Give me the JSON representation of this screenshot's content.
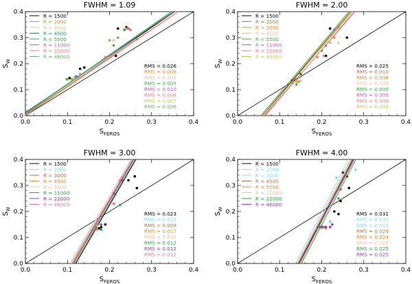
{
  "colors": {
    "1500": "#000000",
    "2000": "#b07040",
    "3000": "#e08a2a",
    "4500": "#1a66c9",
    "5500": "#3cae3c",
    "11000": "#8b2fd1",
    "22000": "#f07b8a",
    "46000": "#c9c94a",
    "cyan": "#7be3e6",
    "green2": "#20a840",
    "pink2": "#f07898",
    "purple2": "#8a3cc8",
    "diag": "#000000",
    "axis": "#000000"
  },
  "chart_data": [
    {
      "type": "scatter",
      "title": "FWHM = 1.09",
      "xlabel": "S_FEROS",
      "ylabel": "S_W",
      "xlim": [
        0.0,
        0.4
      ],
      "ylim": [
        0.0,
        0.4
      ],
      "xticks": [
        "0.0",
        "0.1",
        "0.2",
        "0.3",
        "0.4"
      ],
      "yticks": [
        "0.0",
        "0.1",
        "0.2",
        "0.3",
        "0.4"
      ],
      "legend": [
        {
          "label": "R = 1500",
          "color": "#000000"
        },
        {
          "label": "R = 2000",
          "color": "#e08a2a"
        },
        {
          "label": "R = 3000",
          "color": "#f2c0a0"
        },
        {
          "label": "R = 4500",
          "color": "#1aa060"
        },
        {
          "label": "R = 5500",
          "color": "#3cae3c"
        },
        {
          "label": "R = 11000",
          "color": "#b060c8"
        },
        {
          "label": "R = 22000",
          "color": "#f07b8a"
        },
        {
          "label": "R = 46000",
          "color": "#6ab06a"
        }
      ],
      "rms": [
        {
          "label": "RMS = 0.026",
          "color": "#000000"
        },
        {
          "label": "RMS = 0.006",
          "color": "#e08a2a"
        },
        {
          "label": "RMS = 0.005",
          "color": "#f2c0a0"
        },
        {
          "label": "RMS = 0.005",
          "color": "#3cae3c"
        },
        {
          "label": "RMS = 0.010",
          "color": "#b060c8"
        },
        {
          "label": "RMS = 0.008",
          "color": "#f07b8a"
        },
        {
          "label": "RMS = 0.007",
          "color": "#c9c94a"
        },
        {
          "label": "RMS = 0.006",
          "color": "#6ab06a"
        }
      ],
      "series": [
        {
          "color": "#000000",
          "fit": [
            0.0,
            0.012,
            0.4,
            0.45
          ],
          "points": [
            [
              0.1,
              0.14
            ],
            [
              0.105,
              0.145
            ],
            [
              0.12,
              0.15
            ],
            [
              0.13,
              0.18
            ],
            [
              0.22,
              0.335
            ],
            [
              0.24,
              0.34
            ],
            [
              0.265,
              0.295
            ],
            [
              0.215,
              0.23
            ],
            [
              0.14,
              0.185
            ]
          ]
        },
        {
          "color": "#e08a2a",
          "fit": [
            0.0,
            0.0,
            0.4,
            0.44
          ],
          "points": [
            [
              0.11,
              0.14
            ],
            [
              0.2,
              0.29
            ],
            [
              0.25,
              0.33
            ],
            [
              0.24,
              0.335
            ]
          ]
        },
        {
          "color": "#f2c0a0",
          "fit": [
            0.0,
            0.004,
            0.4,
            0.445
          ],
          "points": [
            [
              0.115,
              0.145
            ],
            [
              0.21,
              0.29
            ]
          ]
        },
        {
          "color": "#1aa060",
          "fit": [
            0.0,
            0.008,
            0.4,
            0.455
          ],
          "points": [
            [
              0.12,
              0.15
            ],
            [
              0.235,
              0.33
            ]
          ]
        },
        {
          "color": "#3cae3c",
          "fit": [
            0.0,
            0.006,
            0.4,
            0.46
          ],
          "points": [
            [
              0.098,
              0.14
            ],
            [
              0.21,
              0.27
            ]
          ]
        },
        {
          "color": "#b060c8",
          "fit": [
            0.0,
            0.002,
            0.4,
            0.45
          ],
          "points": [
            [
              0.125,
              0.15
            ],
            [
              0.245,
              0.335
            ]
          ]
        },
        {
          "color": "#f07b8a",
          "fit": [
            0.0,
            0.004,
            0.4,
            0.44
          ],
          "points": [
            [
              0.13,
              0.16
            ],
            [
              0.19,
              0.225
            ],
            [
              0.205,
              0.23
            ]
          ]
        },
        {
          "color": "#6ab06a",
          "fit": [
            0.0,
            0.01,
            0.4,
            0.46
          ],
          "points": [
            [
              0.1,
              0.14
            ],
            [
              0.22,
              0.3
            ]
          ]
        }
      ]
    },
    {
      "type": "scatter",
      "title": "FWHM = 2.00",
      "xlabel": "S_FEROS",
      "ylabel": "S_W",
      "xlim": [
        0.0,
        0.4
      ],
      "ylim": [
        0.0,
        0.4
      ],
      "xticks": [
        "0.0",
        "0.1",
        "0.2",
        "0.3",
        "0.4"
      ],
      "yticks": [
        "0.0",
        "0.1",
        "0.2",
        "0.3",
        "0.4"
      ],
      "legend": [
        {
          "label": "R = 1500",
          "color": "#000000"
        },
        {
          "label": "R = 2000",
          "color": "#b07040"
        },
        {
          "label": "R = 3000",
          "color": "#e08a2a"
        },
        {
          "label": "R = 4500",
          "color": "#f2c0a0"
        },
        {
          "label": "R = 5500",
          "color": "#3cae3c"
        },
        {
          "label": "R = 11000",
          "color": "#b060c8"
        },
        {
          "label": "R = 22000",
          "color": "#f07b8a"
        },
        {
          "label": "R = 46000",
          "color": "#c9c94a"
        }
      ],
      "rms": [
        {
          "label": "RMS = 0.025",
          "color": "#000000"
        },
        {
          "label": "RMS = 0.010",
          "color": "#b07040"
        },
        {
          "label": "RMS = 0.008",
          "color": "#e08a2a"
        },
        {
          "label": "RMS = 0.009",
          "color": "#f2c0a0"
        },
        {
          "label": "RMS = 0.005",
          "color": "#3cae3c"
        },
        {
          "label": "RMS = 0.005",
          "color": "#b060c8"
        },
        {
          "label": "RMS = 0.004",
          "color": "#f07b8a"
        },
        {
          "label": "RMS = 0.004",
          "color": "#c9c94a"
        }
      ],
      "series": [
        {
          "color": "#000000",
          "fit": [
            0.06,
            0.0,
            0.28,
            0.42
          ],
          "points": [
            [
              0.13,
              0.135
            ],
            [
              0.135,
              0.14
            ],
            [
              0.15,
              0.16
            ],
            [
              0.22,
              0.335
            ],
            [
              0.24,
              0.34
            ],
            [
              0.26,
              0.3
            ],
            [
              0.21,
              0.23
            ]
          ]
        },
        {
          "color": "#b07040",
          "fit": [
            0.058,
            0.0,
            0.278,
            0.42
          ],
          "points": [
            [
              0.14,
              0.14
            ],
            [
              0.2,
              0.25
            ]
          ]
        },
        {
          "color": "#e08a2a",
          "fit": [
            0.062,
            0.0,
            0.282,
            0.42
          ],
          "points": [
            [
              0.145,
              0.13
            ],
            [
              0.23,
              0.3
            ]
          ]
        },
        {
          "color": "#f2c0a0",
          "fit": [
            0.06,
            0.0,
            0.285,
            0.42
          ],
          "points": [
            [
              0.15,
              0.135
            ],
            [
              0.24,
              0.28
            ]
          ]
        },
        {
          "color": "#3cae3c",
          "fit": [
            0.055,
            0.0,
            0.275,
            0.42
          ],
          "points": [
            [
              0.14,
              0.12
            ],
            [
              0.21,
              0.27
            ]
          ]
        },
        {
          "color": "#b060c8",
          "fit": [
            0.064,
            0.0,
            0.29,
            0.42
          ],
          "points": [
            [
              0.13,
              0.125
            ],
            [
              0.23,
              0.33
            ]
          ]
        },
        {
          "color": "#f07b8a",
          "fit": [
            0.066,
            0.0,
            0.288,
            0.42
          ],
          "points": [
            [
              0.19,
              0.225
            ],
            [
              0.205,
              0.23
            ]
          ]
        },
        {
          "color": "#c9c94a",
          "fit": [
            0.062,
            0.0,
            0.28,
            0.42
          ],
          "points": [
            [
              0.14,
              0.13
            ],
            [
              0.22,
              0.28
            ]
          ]
        }
      ]
    },
    {
      "type": "scatter",
      "title": "FWHM = 3.00",
      "xlabel": "S_FEROS",
      "ylabel": "S_W",
      "xlim": [
        0.0,
        0.4
      ],
      "ylim": [
        0.0,
        0.4
      ],
      "xticks": [
        "0.0",
        "0.1",
        "0.2",
        "0.3",
        "0.4"
      ],
      "yticks": [
        "0.0",
        "0.1",
        "0.2",
        "0.3",
        "0.4"
      ],
      "legend": [
        {
          "label": "R = 1500",
          "color": "#000000"
        },
        {
          "label": "R = 2000",
          "color": "#7be3e6"
        },
        {
          "label": "R = 3000",
          "color": "#b07040"
        },
        {
          "label": "R = 4500",
          "color": "#e08a2a"
        },
        {
          "label": "R = 5500",
          "color": "#f2c0a0"
        },
        {
          "label": "R = 11000",
          "color": "#20a840"
        },
        {
          "label": "R = 22000",
          "color": "#8a3cc8"
        },
        {
          "label": "R = 46000",
          "color": "#f07898"
        }
      ],
      "rms": [
        {
          "label": "RMS = 0.023",
          "color": "#000000"
        },
        {
          "label": "RMS = 0.019",
          "color": "#7be3e6"
        },
        {
          "label": "RMS = 0.009",
          "color": "#b07040"
        },
        {
          "label": "RMS = 0.017",
          "color": "#e08a2a"
        },
        {
          "label": "RMS = 0.011",
          "color": "#f2c0a0"
        },
        {
          "label": "RMS = 0.012",
          "color": "#20a840"
        },
        {
          "label": "RMS = 0.012",
          "color": "#8a3cc8"
        },
        {
          "label": "RMS = 0.012",
          "color": "#f07898"
        }
      ],
      "series": [
        {
          "color": "#000000",
          "fit": [
            0.12,
            0.0,
            0.27,
            0.42
          ],
          "points": [
            [
              0.175,
              0.135
            ],
            [
              0.18,
              0.14
            ],
            [
              0.19,
              0.15
            ],
            [
              0.26,
              0.335
            ],
            [
              0.245,
              0.32
            ],
            [
              0.21,
              0.27
            ],
            [
              0.21,
              0.23
            ],
            [
              0.265,
              0.29
            ]
          ]
        },
        {
          "color": "#7be3e6",
          "fit": [
            0.105,
            0.0,
            0.26,
            0.42
          ],
          "points": [
            [
              0.16,
              0.13
            ],
            [
              0.225,
              0.315
            ]
          ]
        },
        {
          "color": "#b07040",
          "fit": [
            0.115,
            0.0,
            0.265,
            0.42
          ],
          "points": [
            [
              0.17,
              0.135
            ],
            [
              0.225,
              0.32
            ]
          ]
        },
        {
          "color": "#e08a2a",
          "fit": [
            0.112,
            0.0,
            0.262,
            0.42
          ],
          "points": [
            [
              0.165,
              0.14
            ],
            [
              0.23,
              0.33
            ]
          ]
        },
        {
          "color": "#f2c0a0",
          "fit": [
            0.108,
            0.0,
            0.258,
            0.42
          ],
          "points": [
            [
              0.17,
              0.145
            ],
            [
              0.22,
              0.29
            ]
          ]
        },
        {
          "color": "#20a840",
          "fit": [
            0.118,
            0.0,
            0.268,
            0.42
          ],
          "points": [
            [
              0.18,
              0.13
            ],
            [
              0.225,
              0.225
            ]
          ]
        },
        {
          "color": "#8a3cc8",
          "fit": [
            0.114,
            0.0,
            0.264,
            0.42
          ],
          "points": [
            [
              0.18,
              0.15
            ],
            [
              0.23,
              0.32
            ]
          ]
        },
        {
          "color": "#f07898",
          "fit": [
            0.11,
            0.0,
            0.262,
            0.42
          ],
          "points": [
            [
              0.17,
              0.13
            ],
            [
              0.21,
              0.23
            ]
          ]
        }
      ]
    },
    {
      "type": "scatter",
      "title": "FWHM = 4.00",
      "xlabel": "S_FEROS",
      "ylabel": "S_W",
      "xlim": [
        0.0,
        0.4
      ],
      "ylim": [
        0.0,
        0.4
      ],
      "xticks": [
        "0.0",
        "0.1",
        "0.2",
        "0.3",
        "0.4"
      ],
      "yticks": [
        "0.0",
        "0.1",
        "0.2",
        "0.3",
        "0.4"
      ],
      "legend": [
        {
          "label": "R = 1500",
          "color": "#000000"
        },
        {
          "label": "R = 2000",
          "color": "#7be3e6"
        },
        {
          "label": "R = 3000",
          "color": "#7be3e6"
        },
        {
          "label": "R = 4500",
          "color": "#b07040"
        },
        {
          "label": "R = 5500",
          "color": "#e08a2a"
        },
        {
          "label": "R = 11000",
          "color": "#f2c0a0"
        },
        {
          "label": "R = 22000",
          "color": "#20a840"
        },
        {
          "label": "R = 46000",
          "color": "#8a3cc8"
        }
      ],
      "rms": [
        {
          "label": "RMS = 0.031",
          "color": "#000000"
        },
        {
          "label": "RMS = 0.032",
          "color": "#7be3e6"
        },
        {
          "label": "RMS = 0.019",
          "color": "#7be3e6"
        },
        {
          "label": "RMS = 0.029",
          "color": "#b07040"
        },
        {
          "label": "RMS = 0.024",
          "color": "#e08a2a"
        },
        {
          "label": "RMS = 0.025",
          "color": "#f2c0a0"
        },
        {
          "label": "RMS = 0.025",
          "color": "#20a840"
        },
        {
          "label": "RMS = 0.025",
          "color": "#8a3cc8"
        }
      ],
      "series": [
        {
          "color": "#000000",
          "fit": [
            0.145,
            0.0,
            0.28,
            0.42
          ],
          "points": [
            [
              0.2,
              0.14
            ],
            [
              0.22,
              0.16
            ],
            [
              0.24,
              0.19
            ],
            [
              0.26,
              0.335
            ],
            [
              0.265,
              0.29
            ],
            [
              0.245,
              0.24
            ],
            [
              0.23,
              0.2
            ],
            [
              0.25,
              0.35
            ]
          ]
        },
        {
          "color": "#7be3e6",
          "fit": [
            0.138,
            0.0,
            0.27,
            0.42
          ],
          "points": [
            [
              0.19,
              0.13
            ],
            [
              0.2,
              0.145
            ],
            [
              0.22,
              0.16
            ],
            [
              0.235,
              0.33
            ],
            [
              0.28,
              0.36
            ]
          ]
        },
        {
          "color": "#b07040",
          "fit": [
            0.148,
            0.0,
            0.282,
            0.42
          ],
          "points": [
            [
              0.205,
              0.14
            ],
            [
              0.245,
              0.285
            ]
          ]
        },
        {
          "color": "#e08a2a",
          "fit": [
            0.142,
            0.0,
            0.276,
            0.42
          ],
          "points": [
            [
              0.21,
              0.135
            ],
            [
              0.24,
              0.285
            ]
          ]
        },
        {
          "color": "#f2c0a0",
          "fit": [
            0.15,
            0.0,
            0.285,
            0.42
          ],
          "points": [
            [
              0.2,
              0.135
            ],
            [
              0.23,
              0.25
            ]
          ]
        },
        {
          "color": "#20a840",
          "fit": [
            0.152,
            0.0,
            0.288,
            0.42
          ],
          "points": [
            [
              0.195,
              0.14
            ],
            [
              0.24,
              0.25
            ]
          ]
        },
        {
          "color": "#8a3cc8",
          "fit": [
            0.146,
            0.0,
            0.284,
            0.42
          ],
          "points": [
            [
              0.2,
              0.14
            ],
            [
              0.21,
              0.14
            ],
            [
              0.22,
              0.14
            ],
            [
              0.225,
              0.15
            ]
          ]
        }
      ]
    }
  ]
}
